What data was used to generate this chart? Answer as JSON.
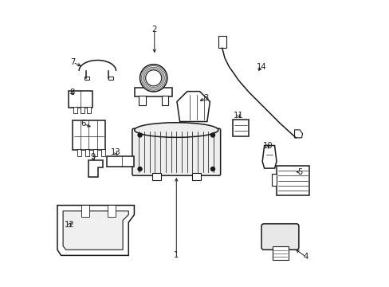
{
  "background_color": "#ffffff",
  "line_color": "#1a1a1a",
  "text_color": "#1a1a1a",
  "figsize": [
    4.89,
    3.6
  ],
  "dpi": 100
}
